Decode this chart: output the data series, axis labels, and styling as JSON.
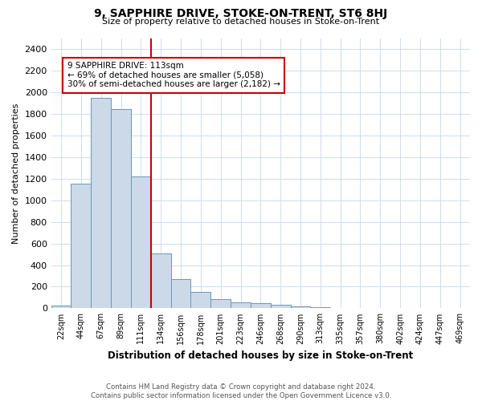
{
  "title": "9, SAPPHIRE DRIVE, STOKE-ON-TRENT, ST6 8HJ",
  "subtitle": "Size of property relative to detached houses in Stoke-on-Trent",
  "xlabel": "Distribution of detached houses by size in Stoke-on-Trent",
  "ylabel": "Number of detached properties",
  "footer_line1": "Contains HM Land Registry data © Crown copyright and database right 2024.",
  "footer_line2": "Contains public sector information licensed under the Open Government Licence v3.0.",
  "bar_labels": [
    "22sqm",
    "44sqm",
    "67sqm",
    "89sqm",
    "111sqm",
    "134sqm",
    "156sqm",
    "178sqm",
    "201sqm",
    "223sqm",
    "246sqm",
    "268sqm",
    "290sqm",
    "313sqm",
    "335sqm",
    "357sqm",
    "380sqm",
    "402sqm",
    "424sqm",
    "447sqm",
    "469sqm"
  ],
  "bar_values": [
    25,
    1150,
    1950,
    1840,
    1220,
    510,
    270,
    155,
    85,
    55,
    45,
    30,
    18,
    14,
    5,
    5,
    3,
    3,
    2,
    2,
    2
  ],
  "bar_color": "#ccd9e8",
  "bar_edgecolor": "#6699bb",
  "ylim": [
    0,
    2500
  ],
  "yticks": [
    0,
    200,
    400,
    600,
    800,
    1000,
    1200,
    1400,
    1600,
    1800,
    2000,
    2200,
    2400
  ],
  "vline_index": 4,
  "vline_color": "#cc0000",
  "annotation_text": "9 SAPPHIRE DRIVE: 113sqm\n← 69% of detached houses are smaller (5,058)\n30% of semi-detached houses are larger (2,182) →",
  "annotation_box_facecolor": "#ffffff",
  "annotation_box_edgecolor": "#cc0000",
  "background_color": "#ffffff",
  "grid_color": "#ccddee"
}
